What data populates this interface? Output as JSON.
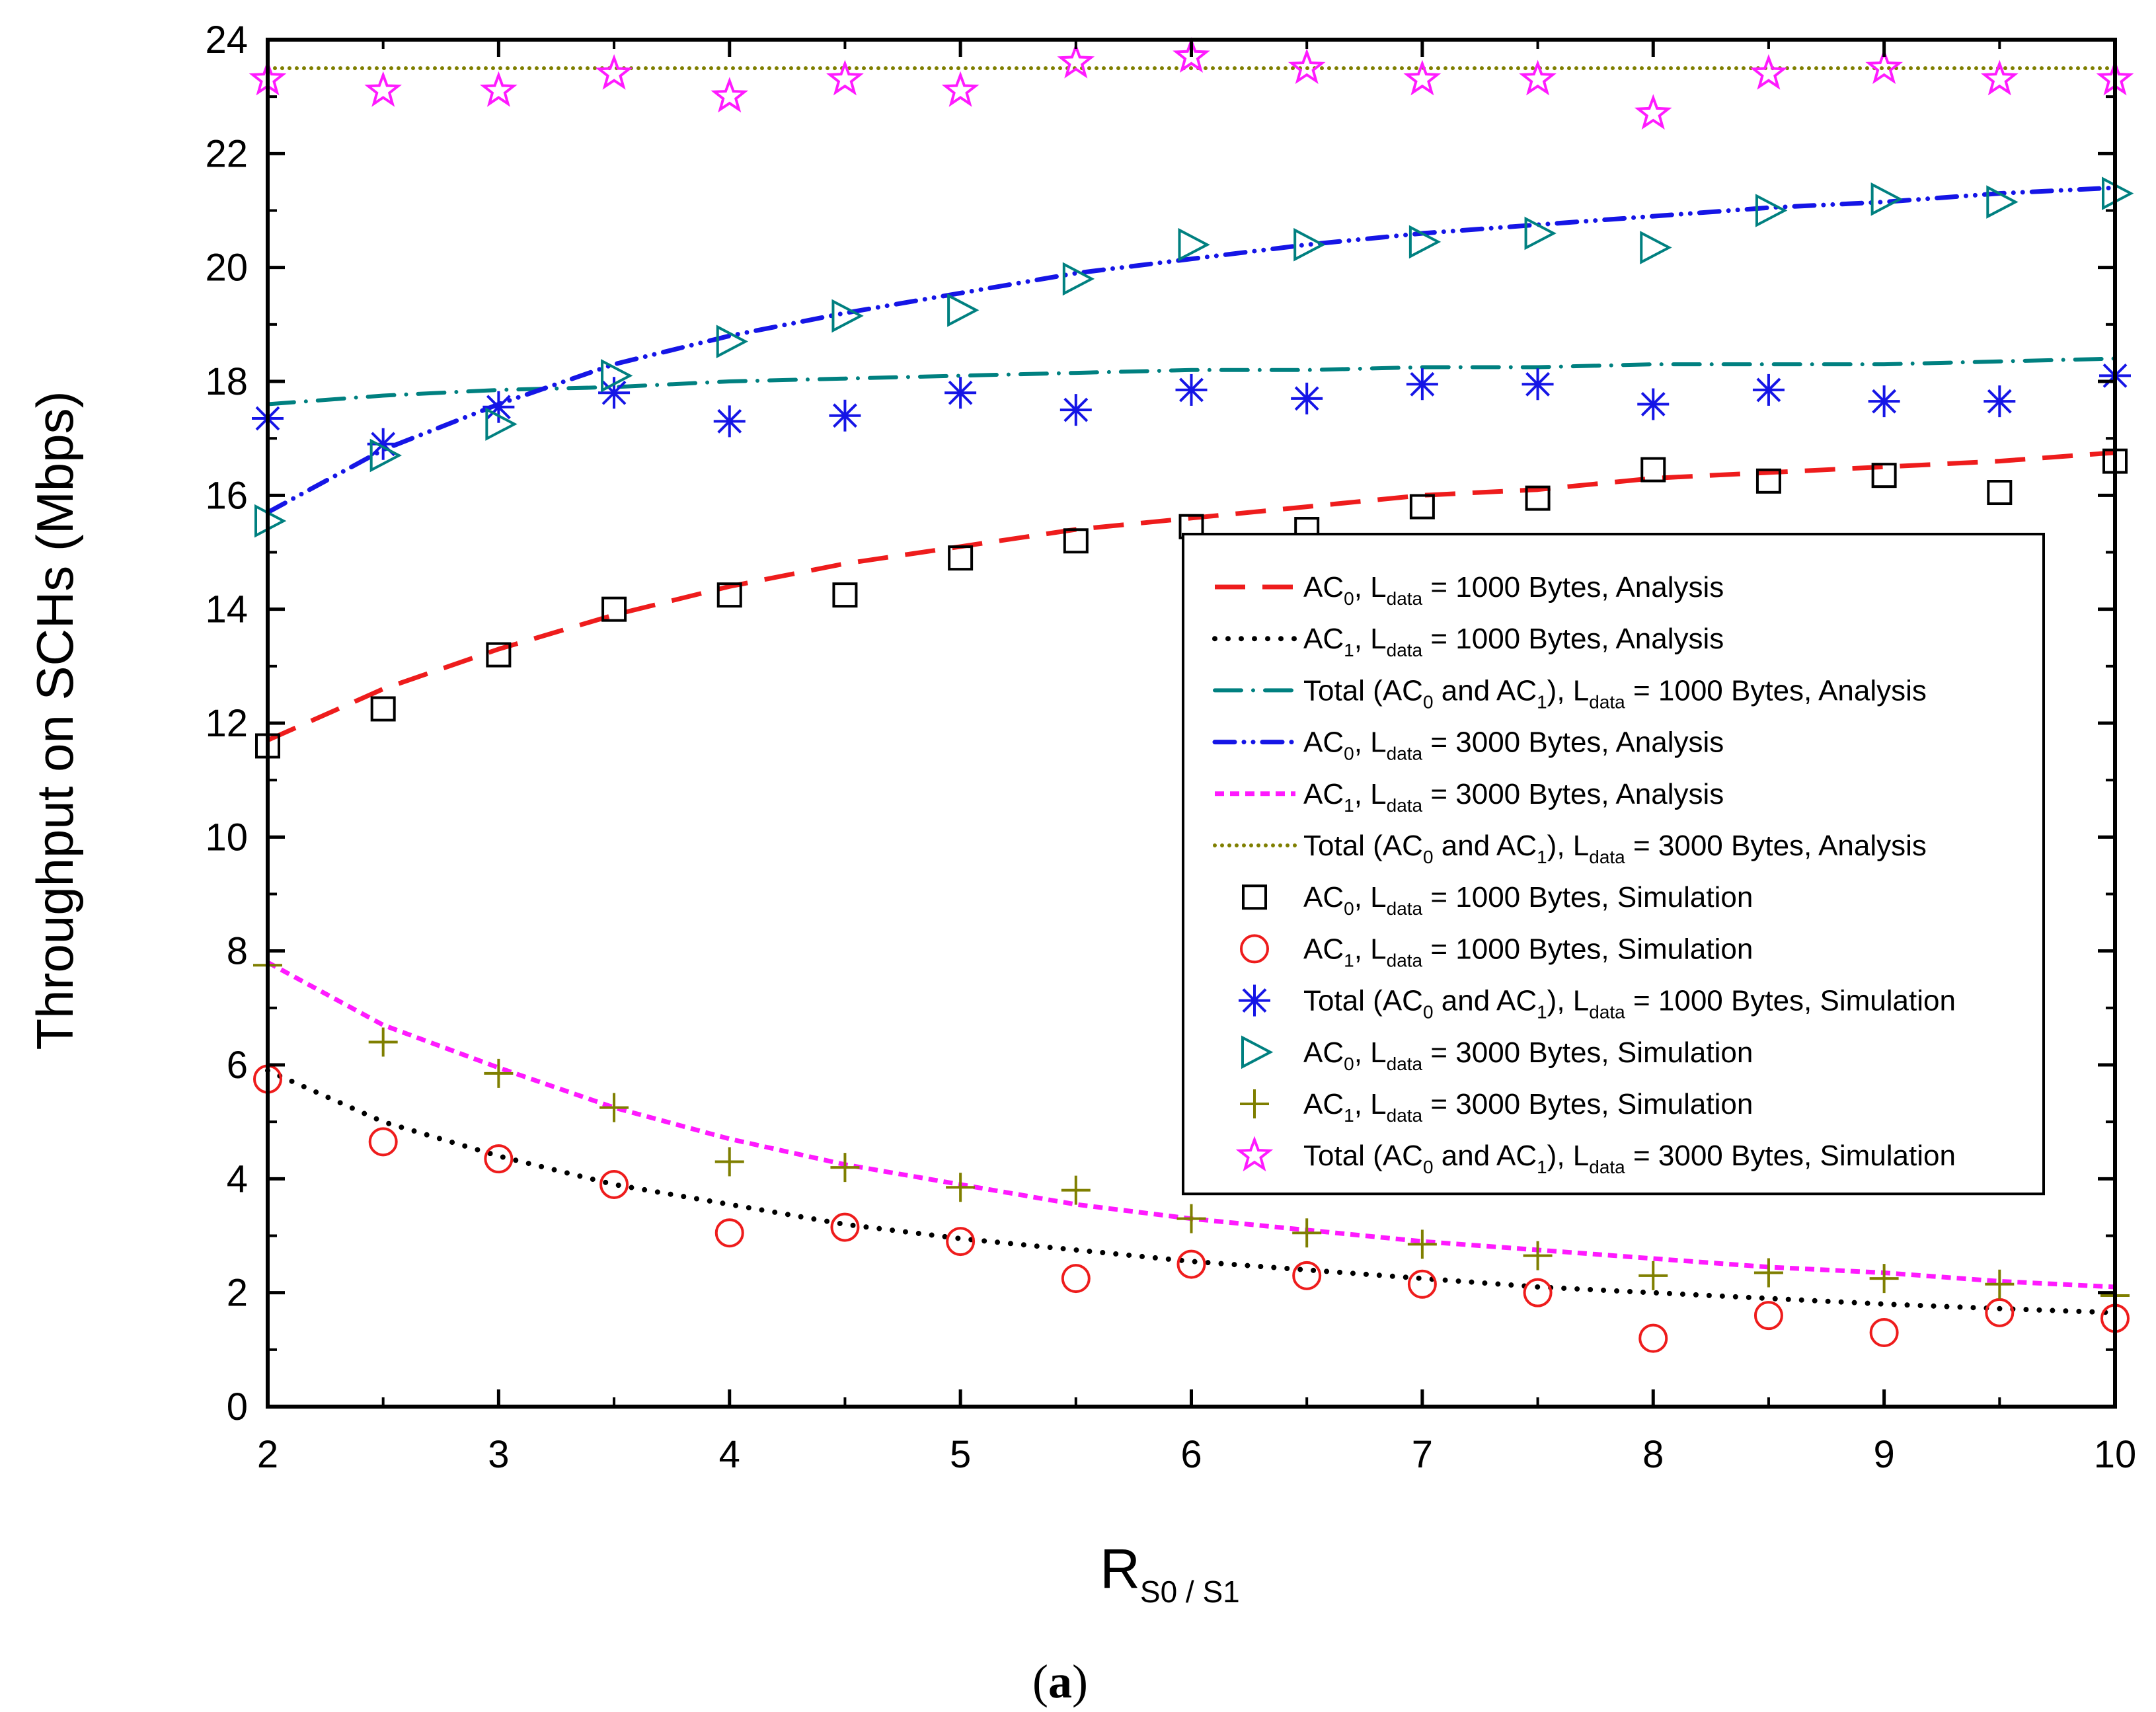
{
  "chart_data": {
    "type": "line",
    "title": "",
    "ylabel": "Throughput on SCHs (Mbps)",
    "xlabel": {
      "main": "R",
      "sub": "S0 / S1"
    },
    "caption": {
      "open": "(",
      "letter": "a",
      "close": ")"
    },
    "xlim": [
      2,
      10
    ],
    "ylim": [
      0,
      24
    ],
    "xticks": [
      2,
      3,
      4,
      5,
      6,
      7,
      8,
      9,
      10
    ],
    "yticks": [
      0,
      2,
      4,
      6,
      8,
      10,
      12,
      14,
      16,
      18,
      20,
      22,
      24
    ],
    "grid": false,
    "legend_position": "center-right",
    "x": [
      2,
      2.5,
      3,
      3.5,
      4,
      4.5,
      5,
      5.5,
      6,
      6.5,
      7,
      7.5,
      8,
      8.5,
      9,
      9.5,
      10
    ],
    "series": [
      {
        "id": "ac0_1000_analysis",
        "kind": "line",
        "color": "#ee1c1c",
        "dash": "dash",
        "label": [
          {
            "t": "AC"
          },
          {
            "s": "0"
          },
          {
            "t": ", L"
          },
          {
            "s": "data"
          },
          {
            "t": " = 1000 Bytes, Analysis"
          }
        ],
        "values": [
          11.7,
          12.6,
          13.3,
          13.9,
          14.4,
          14.8,
          15.1,
          15.4,
          15.6,
          15.8,
          16.0,
          16.1,
          16.3,
          16.4,
          16.5,
          16.6,
          16.75
        ]
      },
      {
        "id": "ac1_1000_analysis",
        "kind": "line",
        "color": "#000000",
        "dash": "dot",
        "label": [
          {
            "t": "AC"
          },
          {
            "s": "1"
          },
          {
            "t": ", L"
          },
          {
            "s": "data"
          },
          {
            "t": " = 1000 Bytes, Analysis"
          }
        ],
        "values": [
          5.9,
          5.0,
          4.4,
          3.9,
          3.55,
          3.2,
          2.95,
          2.75,
          2.55,
          2.4,
          2.25,
          2.1,
          2.0,
          1.9,
          1.8,
          1.72,
          1.65
        ]
      },
      {
        "id": "total_1000_analysis",
        "kind": "line",
        "color": "#008080",
        "dash": "dashdot",
        "label": [
          {
            "t": "Total (AC"
          },
          {
            "s": "0"
          },
          {
            "t": " and AC"
          },
          {
            "s": "1"
          },
          {
            "t": "), L"
          },
          {
            "s": "data"
          },
          {
            "t": " = 1000 Bytes,  Analysis"
          }
        ],
        "values": [
          17.6,
          17.75,
          17.85,
          17.9,
          18.0,
          18.05,
          18.1,
          18.15,
          18.2,
          18.2,
          18.25,
          18.25,
          18.3,
          18.3,
          18.3,
          18.35,
          18.4
        ]
      },
      {
        "id": "ac0_3000_analysis",
        "kind": "line",
        "color": "#1515e6",
        "dash": "dashdotdot",
        "label": [
          {
            "t": "AC"
          },
          {
            "s": "0"
          },
          {
            "t": ", L"
          },
          {
            "s": "data"
          },
          {
            "t": " = 3000 Bytes, Analysis"
          }
        ],
        "values": [
          15.7,
          16.8,
          17.6,
          18.3,
          18.8,
          19.2,
          19.55,
          19.9,
          20.15,
          20.4,
          20.6,
          20.75,
          20.9,
          21.05,
          21.15,
          21.3,
          21.4
        ]
      },
      {
        "id": "ac1_3000_analysis",
        "kind": "line",
        "color": "#ff1aff",
        "dash": "shortdash",
        "label": [
          {
            "t": "AC"
          },
          {
            "s": "1"
          },
          {
            "t": ", L"
          },
          {
            "s": "data"
          },
          {
            "t": " = 3000 Bytes, Analysis"
          }
        ],
        "values": [
          7.8,
          6.7,
          5.95,
          5.25,
          4.7,
          4.25,
          3.9,
          3.55,
          3.3,
          3.1,
          2.9,
          2.75,
          2.6,
          2.45,
          2.35,
          2.2,
          2.1
        ]
      },
      {
        "id": "total_3000_analysis",
        "kind": "line",
        "color": "#7f7f00",
        "dash": "densedot",
        "label": [
          {
            "t": "Total (AC"
          },
          {
            "s": "0"
          },
          {
            "t": " and AC"
          },
          {
            "s": "1"
          },
          {
            "t": "), L"
          },
          {
            "s": "data"
          },
          {
            "t": " = 3000 Bytes, Analysis"
          }
        ],
        "values": [
          23.5,
          23.5,
          23.5,
          23.5,
          23.5,
          23.5,
          23.5,
          23.5,
          23.5,
          23.5,
          23.5,
          23.5,
          23.5,
          23.5,
          23.5,
          23.5,
          23.5
        ]
      },
      {
        "id": "ac0_1000_sim",
        "kind": "marker",
        "marker": "square",
        "color": "#000000",
        "label": [
          {
            "t": "AC"
          },
          {
            "s": "0"
          },
          {
            "t": ", L"
          },
          {
            "s": "data"
          },
          {
            "t": " = 1000 Bytes, Simulation"
          }
        ],
        "values": [
          11.6,
          12.25,
          13.2,
          14.0,
          14.25,
          14.25,
          14.9,
          15.2,
          15.45,
          15.4,
          15.8,
          15.95,
          16.45,
          16.25,
          16.35,
          16.05,
          16.6
        ]
      },
      {
        "id": "ac1_1000_sim",
        "kind": "marker",
        "marker": "circle",
        "color": "#ee1c1c",
        "label": [
          {
            "t": "AC"
          },
          {
            "s": "1"
          },
          {
            "t": ", L"
          },
          {
            "s": "data"
          },
          {
            "t": " = 1000 Bytes, Simulation"
          }
        ],
        "values": [
          5.75,
          4.65,
          4.35,
          3.9,
          3.05,
          3.15,
          2.9,
          2.25,
          2.5,
          2.3,
          2.15,
          2.0,
          1.2,
          1.6,
          1.3,
          1.65,
          1.55
        ]
      },
      {
        "id": "total_1000_sim",
        "kind": "marker",
        "marker": "asterisk",
        "color": "#1515e6",
        "label": [
          {
            "t": "Total (AC"
          },
          {
            "s": "0"
          },
          {
            "t": " and AC"
          },
          {
            "s": "1"
          },
          {
            "t": "),  L"
          },
          {
            "s": "data"
          },
          {
            "t": " = 1000 Bytes, Simulation"
          }
        ],
        "values": [
          17.35,
          16.9,
          17.55,
          17.8,
          17.3,
          17.4,
          17.8,
          17.5,
          17.85,
          17.7,
          17.95,
          17.95,
          17.6,
          17.85,
          17.65,
          17.65,
          18.1
        ]
      },
      {
        "id": "ac0_3000_sim",
        "kind": "marker",
        "marker": "triangle",
        "color": "#008080",
        "label": [
          {
            "t": "AC"
          },
          {
            "s": "0"
          },
          {
            "t": ", L"
          },
          {
            "s": "data"
          },
          {
            "t": " = 3000 Bytes, Simulation"
          }
        ],
        "values": [
          15.55,
          16.7,
          17.25,
          18.1,
          18.7,
          19.15,
          19.25,
          19.8,
          20.4,
          20.4,
          20.45,
          20.6,
          20.35,
          21.0,
          21.2,
          21.15,
          21.3
        ]
      },
      {
        "id": "ac1_3000_sim",
        "kind": "marker",
        "marker": "plus",
        "color": "#7f7f00",
        "label": [
          {
            "t": "AC"
          },
          {
            "s": "1"
          },
          {
            "t": ", L"
          },
          {
            "s": "data"
          },
          {
            "t": " = 3000 Bytes, Simulation"
          }
        ],
        "values": [
          7.75,
          6.4,
          5.85,
          5.25,
          4.3,
          4.2,
          3.85,
          3.8,
          3.3,
          3.05,
          2.85,
          2.65,
          2.3,
          2.35,
          2.25,
          2.15,
          1.95
        ]
      },
      {
        "id": "total_3000_sim",
        "kind": "marker",
        "marker": "star",
        "color": "#ff1aff",
        "label": [
          {
            "t": "Total (AC"
          },
          {
            "s": "0"
          },
          {
            "t": " and AC"
          },
          {
            "s": "1"
          },
          {
            "t": "),  L"
          },
          {
            "s": "data"
          },
          {
            "t": " = 3000 Bytes, Simulation"
          }
        ],
        "values": [
          23.3,
          23.1,
          23.1,
          23.4,
          23.0,
          23.3,
          23.1,
          23.6,
          23.7,
          23.5,
          23.3,
          23.3,
          22.7,
          23.4,
          23.5,
          23.3,
          23.3
        ]
      }
    ]
  }
}
